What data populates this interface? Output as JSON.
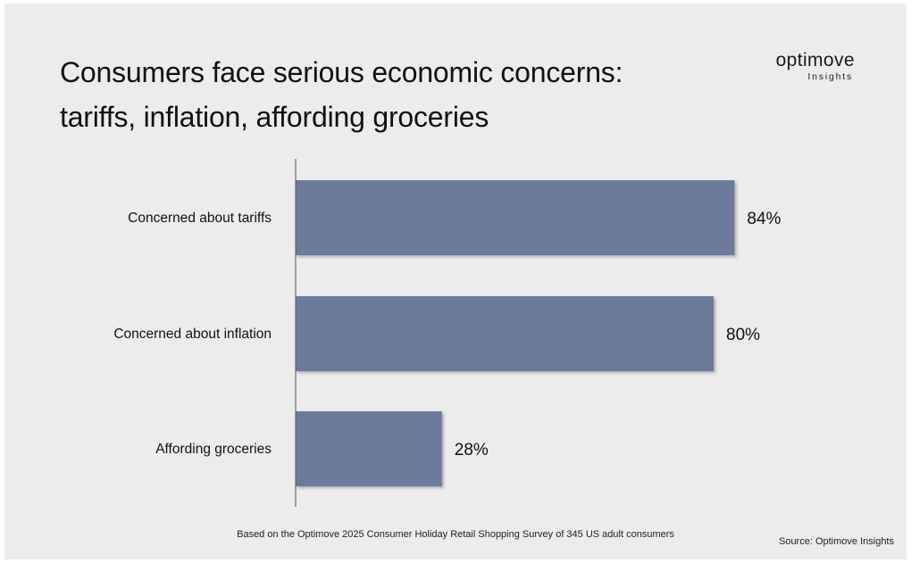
{
  "title_lines": [
    "Consumers face serious economic concerns:",
    "tariffs, inflation, affording groceries"
  ],
  "logo": {
    "word": "optimove",
    "sub": "Insights"
  },
  "footnote": "Based on the Optimove 2025 Consumer Holiday Retail Shopping Survey of 345 US adult consumers",
  "source": "Source: Optimove Insights",
  "colors": {
    "bar": "#6c7a9c",
    "background": "#ececec",
    "axis": "#555555",
    "text": "#111111"
  },
  "chart_data": {
    "type": "bar",
    "orientation": "horizontal",
    "categories": [
      "Concerned about tariffs",
      "Concerned about inflation",
      "Affording groceries"
    ],
    "values": [
      84,
      80,
      28
    ],
    "value_labels": [
      "84%",
      "80%",
      "28%"
    ],
    "unit": "%",
    "xlim": [
      0,
      100
    ],
    "grid": false,
    "legend": "none"
  }
}
